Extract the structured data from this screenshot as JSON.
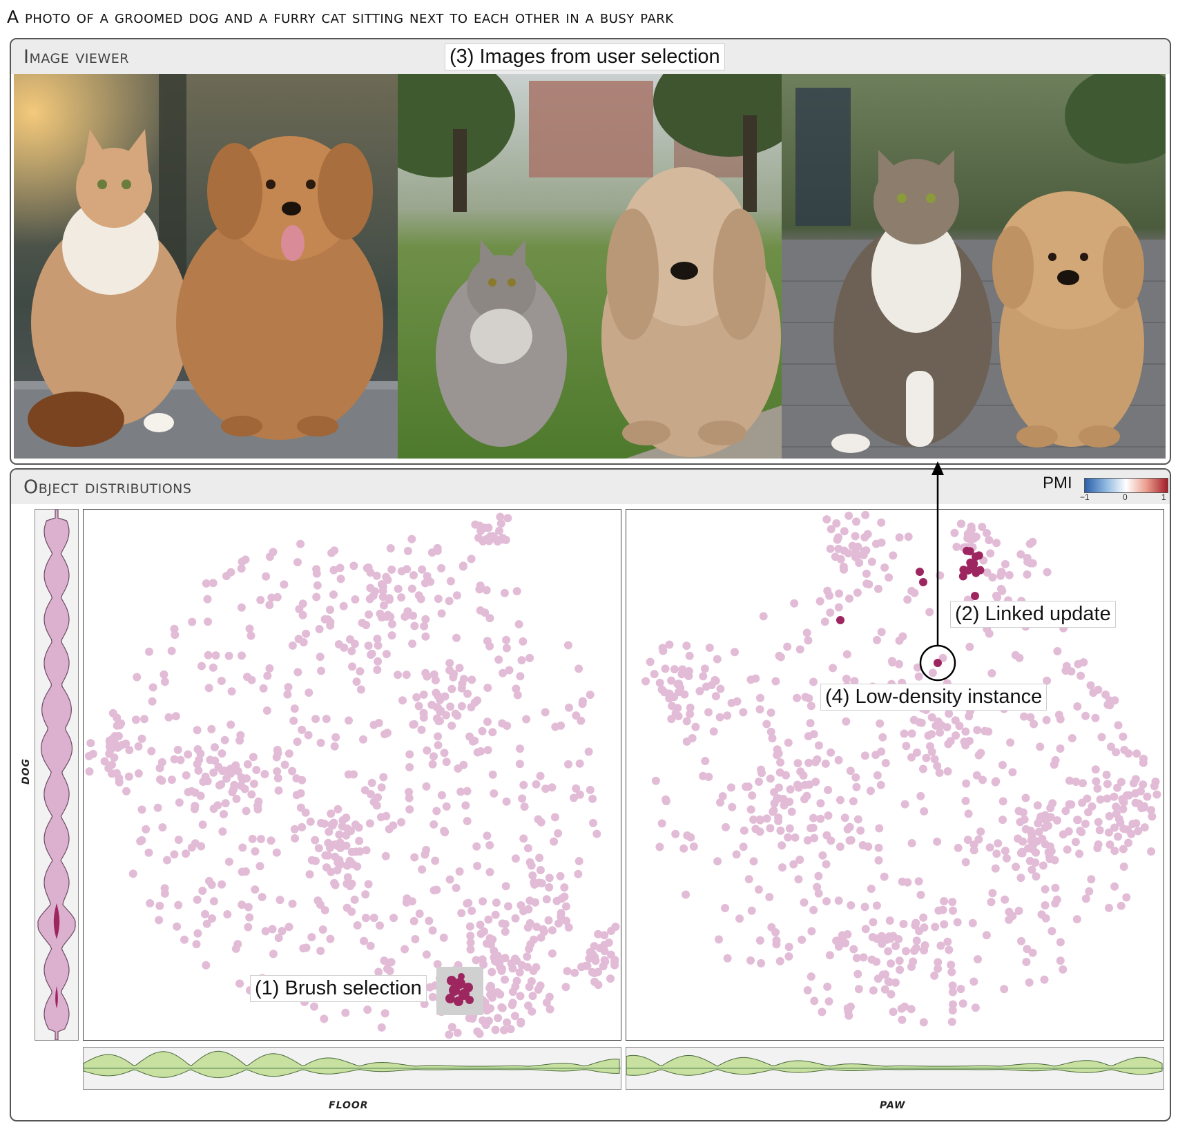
{
  "caption": "A photo of a groomed dog and a furry cat sitting next to each other in a busy park",
  "image_viewer": {
    "title": "Image viewer",
    "annotation": "(3) Images from user selection",
    "images": [
      {
        "subject": "long-haired orange cat and fluffy brown dog on stone ledge"
      },
      {
        "subject": "grey long-haired cat and shaggy beige dog on park lawn"
      },
      {
        "subject": "tabby cat with white chest and fluffy tan dog on brick path"
      }
    ]
  },
  "object_distributions": {
    "title": "Object distributions",
    "legend": {
      "label": "PMI",
      "ticks": [
        "−1",
        "0",
        "1"
      ],
      "colors": [
        "#2a5fa8",
        "#ffffff",
        "#a31d2b"
      ]
    },
    "annotations": {
      "brush": "(1) Brush selection",
      "linked": "(2) Linked update",
      "low_density": "(4) Low-density instance"
    },
    "axes": {
      "y_label": "dog",
      "x_label_left": "floor",
      "x_label_right": "paw"
    },
    "colors": {
      "point": "#e2bcd6",
      "selected": "#9e2660",
      "violin_y": "#dcb0cf",
      "violin_x": "#c8e0a0"
    }
  }
}
